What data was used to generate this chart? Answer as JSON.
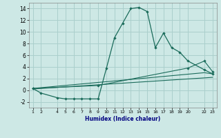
{
  "xlabel": "Humidex (Indice chaleur)",
  "background_color": "#cde8e5",
  "grid_color": "#aacfcc",
  "line_color": "#1a6b5a",
  "x_ticks": [
    1,
    2,
    4,
    5,
    6,
    7,
    8,
    9,
    10,
    11,
    12,
    13,
    14,
    15,
    16,
    17,
    18,
    19,
    20,
    22,
    23
  ],
  "series1_x": [
    1,
    2,
    4,
    5,
    6,
    7,
    8,
    9,
    10,
    11,
    12,
    13,
    14,
    15,
    16,
    17,
    18,
    19,
    20,
    22,
    23
  ],
  "series1_y": [
    0.3,
    -0.5,
    -1.3,
    -1.5,
    -1.5,
    -1.5,
    -1.5,
    -1.5,
    3.7,
    9.0,
    11.5,
    14.0,
    14.2,
    13.5,
    7.3,
    9.8,
    7.3,
    6.5,
    5.0,
    3.5,
    2.8
  ],
  "line2_x": [
    1,
    9,
    20,
    22,
    23
  ],
  "line2_y": [
    0.3,
    0.8,
    3.8,
    5.0,
    3.2
  ],
  "line3_x": [
    1,
    22,
    23
  ],
  "line3_y": [
    0.3,
    3.0,
    2.8
  ],
  "line4_x": [
    1,
    23
  ],
  "line4_y": [
    0.2,
    2.2
  ],
  "ylim": [
    -3,
    15
  ],
  "xlim": [
    0.5,
    23.5
  ],
  "yticks": [
    -2,
    0,
    2,
    4,
    6,
    8,
    10,
    12,
    14
  ]
}
